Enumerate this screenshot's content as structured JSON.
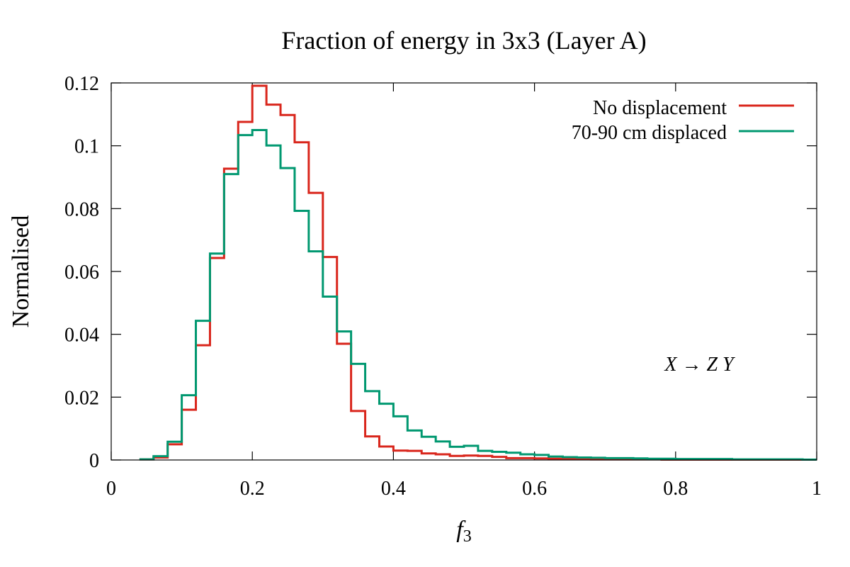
{
  "chart_data": {
    "type": "histogram",
    "title": "Fraction of energy in 3x3 (Layer A)",
    "xlabel_main": "f",
    "xlabel_sub": "3",
    "ylabel": "Normalised",
    "xlim": [
      0,
      1
    ],
    "ylim": [
      0,
      0.12
    ],
    "x_ticks": [
      0,
      0.2,
      0.4,
      0.6,
      0.8,
      1
    ],
    "x_tick_labels": [
      "0",
      "0.2",
      "0.4",
      "0.6",
      "0.8",
      "1"
    ],
    "y_ticks": [
      0,
      0.02,
      0.04,
      0.06,
      0.08,
      0.1,
      0.12
    ],
    "y_tick_labels": [
      "0",
      "0.02",
      "0.04",
      "0.06",
      "0.08",
      "0.1",
      "0.12"
    ],
    "legend_position": "top-right",
    "annotation": "X → Z Y",
    "bin_edges": [
      0.04,
      0.06,
      0.08,
      0.1,
      0.12,
      0.14,
      0.16,
      0.18,
      0.2,
      0.22,
      0.24,
      0.26,
      0.28,
      0.3,
      0.32,
      0.34,
      0.36,
      0.38,
      0.4,
      0.42,
      0.44,
      0.46,
      0.48,
      0.5,
      0.52,
      0.54,
      0.56,
      0.58,
      0.6,
      0.62,
      0.64,
      0.66,
      0.68,
      0.7,
      0.72,
      0.74,
      0.76,
      0.78,
      0.8,
      0.82,
      0.84,
      0.86,
      0.88,
      0.9,
      0.92,
      0.94,
      0.96,
      0.98,
      1.0
    ],
    "series": [
      {
        "name": "No displacement",
        "color": "#d9261c",
        "values": [
          0.0002,
          0.0008,
          0.005,
          0.016,
          0.0365,
          0.0643,
          0.0927,
          0.1076,
          0.1191,
          0.1131,
          0.1098,
          0.1011,
          0.085,
          0.0646,
          0.037,
          0.0156,
          0.0075,
          0.0043,
          0.003,
          0.0029,
          0.0021,
          0.0018,
          0.0013,
          0.0014,
          0.0013,
          0.001,
          0.0006,
          0.0006,
          0.0005,
          0.0004,
          0.0004,
          0.0003,
          0.0002,
          0.0002,
          0.0002,
          0.0002,
          0.0002,
          0.0001,
          0.0001,
          0.0001,
          0.0001,
          0.0001,
          0.0001,
          0.0001,
          0.0001,
          0.0001,
          0.0001,
          0.0001
        ]
      },
      {
        "name": "70-90 cm displaced",
        "color": "#009870",
        "values": [
          0.0002,
          0.0012,
          0.0058,
          0.0206,
          0.0443,
          0.0657,
          0.091,
          0.1034,
          0.105,
          0.1001,
          0.0929,
          0.0793,
          0.0664,
          0.052,
          0.0409,
          0.0306,
          0.0219,
          0.0179,
          0.0139,
          0.0094,
          0.0074,
          0.0059,
          0.0042,
          0.0045,
          0.0029,
          0.0026,
          0.0023,
          0.0018,
          0.0016,
          0.0011,
          0.0009,
          0.0008,
          0.0007,
          0.0006,
          0.0006,
          0.0005,
          0.0004,
          0.0004,
          0.0003,
          0.0003,
          0.0003,
          0.0003,
          0.0002,
          0.0002,
          0.0002,
          0.0002,
          0.0002,
          0.0001
        ]
      }
    ]
  }
}
